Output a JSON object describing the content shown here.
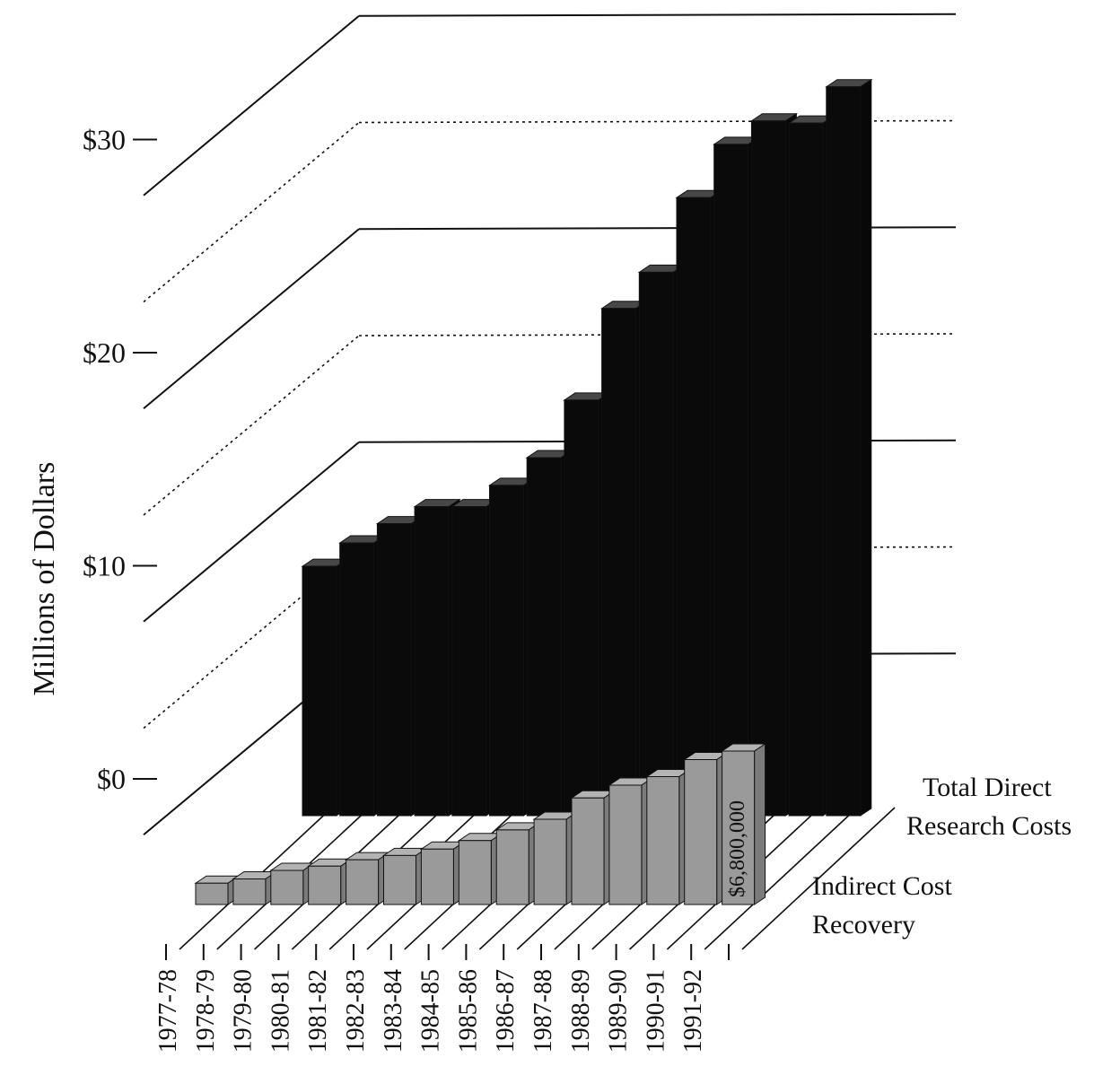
{
  "chart_data": {
    "type": "bar",
    "ylabel": "Millions of Dollars",
    "ylim": [
      0,
      40
    ],
    "yticks": [
      {
        "value": 0,
        "label": "$0"
      },
      {
        "value": 10,
        "label": "$10"
      },
      {
        "value": 20,
        "label": "$20"
      },
      {
        "value": 30,
        "label": "$30"
      }
    ],
    "categories": [
      "1977-78",
      "1978-79",
      "1979-80",
      "1980-81",
      "1981-82",
      "1982-83",
      "1983-84",
      "1984-85",
      "1985-86",
      "1986-87",
      "1987-88",
      "1988-89",
      "1989-90",
      "1990-91",
      "1991-92"
    ],
    "series": [
      {
        "name": "Total Direct Research Costs",
        "color": "#0a0a0a",
        "values": [
          11.7,
          12.8,
          13.7,
          14.5,
          14.5,
          15.5,
          16.8,
          19.5,
          23.8,
          25.5,
          29.0,
          31.5,
          32.6,
          32.5,
          34.2
        ]
      },
      {
        "name": "Indirect Cost Recovery",
        "color": "#9a9a9a",
        "values": [
          1.0,
          1.2,
          1.6,
          1.8,
          2.1,
          2.3,
          2.6,
          3.0,
          3.5,
          4.0,
          5.0,
          5.6,
          6.0,
          6.8,
          7.2
        ]
      }
    ],
    "annotations": [
      "$6,800,000"
    ],
    "legend_position": "right",
    "grid": true
  }
}
